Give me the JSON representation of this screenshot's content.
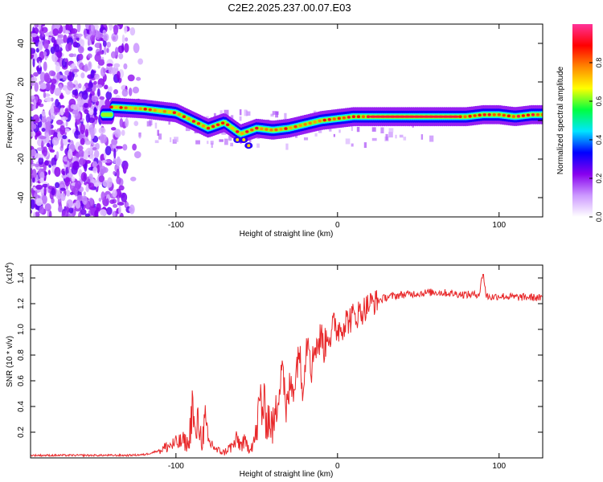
{
  "title": "C2E2.2025.237.00.07.E03",
  "chart_data": [
    {
      "type": "heatmap",
      "name": "spectrogram",
      "xlabel": "Height of straight line (km)",
      "ylabel": "Frequency (Hz)",
      "xlim": [
        -190,
        127
      ],
      "ylim": [
        -50,
        50
      ],
      "xticks": [
        -100,
        0,
        100
      ],
      "xtick_labels": [
        "-100",
        "0",
        "100"
      ],
      "yticks": [
        -40,
        -20,
        0,
        20,
        40
      ],
      "ytick_labels": [
        "-40",
        "-20",
        "0",
        "20",
        "40"
      ],
      "colorbar": {
        "label": "Normalized spectral amplitude",
        "range": [
          0,
          1
        ],
        "ticks": [
          0,
          0.2,
          0.4,
          0.6,
          0.8
        ],
        "tick_labels": [
          "0.0",
          "0.2",
          "0.4",
          "0.6",
          "0.8"
        ],
        "colormap": [
          "#ffffff",
          "#cc99ff",
          "#8800ee",
          "#0000ff",
          "#00e5ff",
          "#00ff40",
          "#ffff00",
          "#ff8800",
          "#ff0000",
          "#ff3399"
        ]
      },
      "ridge": {
        "description_x": [
          -140,
          -120,
          -100,
          -90,
          -80,
          -70,
          -60,
          -50,
          -40,
          -30,
          -20,
          -10,
          0,
          10,
          20,
          40,
          60,
          80,
          90,
          100,
          110,
          120,
          127
        ],
        "description_freq": [
          7,
          6,
          4,
          0,
          -4,
          -1,
          -7,
          -4,
          -5,
          -4,
          -2,
          0,
          1,
          2,
          2,
          2,
          2,
          2,
          3,
          3,
          2,
          3,
          3
        ]
      }
    },
    {
      "type": "line",
      "name": "snr",
      "xlabel": "Height of straight line (km)",
      "ylabel": "SNR (10 * v/v)",
      "y_scale_label": "(x10",
      "y_scale_exponent": "4",
      "xlim": [
        -190,
        127
      ],
      "ylim": [
        0,
        1.5
      ],
      "xticks": [
        -100,
        0,
        100
      ],
      "xtick_labels": [
        "-100",
        "0",
        "100"
      ],
      "yticks": [
        0.2,
        0.4,
        0.6,
        0.8,
        1.0,
        1.2,
        1.4
      ],
      "ytick_labels": [
        "0.2",
        "0.4",
        "0.6",
        "0.8",
        "1.0",
        "1.2",
        "1.4"
      ],
      "series": [
        {
          "name": "SNR",
          "color": "#e8282a",
          "x": [
            -190,
            -170,
            -150,
            -130,
            -120,
            -115,
            -110,
            -105,
            -100,
            -95,
            -92,
            -90,
            -88,
            -86,
            -84,
            -82,
            -80,
            -77,
            -75,
            -72,
            -70,
            -68,
            -65,
            -62,
            -60,
            -58,
            -55,
            -52,
            -50,
            -48,
            -45,
            -42,
            -40,
            -38,
            -36,
            -34,
            -32,
            -30,
            -28,
            -26,
            -24,
            -22,
            -20,
            -18,
            -16,
            -14,
            -12,
            -10,
            -8,
            -6,
            -4,
            -2,
            0,
            5,
            10,
            15,
            20,
            25,
            30,
            35,
            40,
            50,
            60,
            70,
            80,
            85,
            88,
            90,
            92,
            95,
            100,
            110,
            120,
            127
          ],
          "y": [
            0.02,
            0.02,
            0.02,
            0.02,
            0.025,
            0.04,
            0.06,
            0.09,
            0.11,
            0.13,
            0.1,
            0.42,
            0.15,
            0.3,
            0.12,
            0.28,
            0.12,
            0.1,
            0.06,
            0.05,
            0.04,
            0.07,
            0.09,
            0.14,
            0.1,
            0.12,
            0.08,
            0.12,
            0.2,
            0.45,
            0.35,
            0.3,
            0.22,
            0.35,
            0.6,
            0.8,
            0.3,
            0.52,
            0.58,
            0.6,
            0.9,
            0.55,
            0.78,
            1.0,
            0.68,
            0.9,
            0.88,
            0.95,
            0.85,
            1.0,
            0.92,
            1.06,
            1.0,
            1.06,
            1.1,
            1.14,
            1.2,
            1.22,
            1.25,
            1.26,
            1.27,
            1.28,
            1.29,
            1.28,
            1.27,
            1.27,
            1.28,
            1.45,
            1.26,
            1.25,
            1.26,
            1.25,
            1.25,
            1.24
          ]
        }
      ]
    }
  ]
}
